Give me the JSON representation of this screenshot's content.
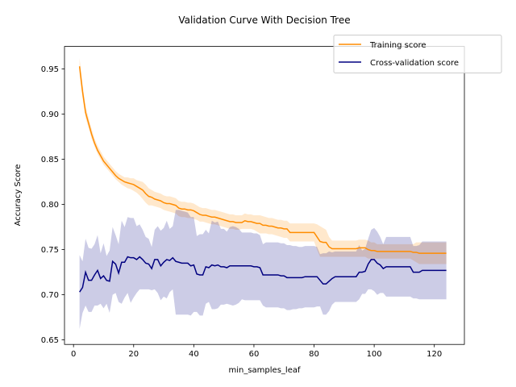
{
  "chart_data": {
    "type": "line",
    "title": "Validation Curve With Decision Tree",
    "xlabel": "min_samples_leaf",
    "ylabel": "Accuracy Score",
    "xlim": [
      -3,
      130
    ],
    "ylim": [
      0.645,
      0.975
    ],
    "xticks": [
      0,
      20,
      40,
      60,
      80,
      100,
      120
    ],
    "yticks": [
      0.65,
      0.7,
      0.75,
      0.8,
      0.85,
      0.9,
      0.95
    ],
    "grid": false,
    "legend_position": "top-right",
    "x": [
      2,
      3,
      4,
      5,
      6,
      7,
      8,
      9,
      10,
      11,
      12,
      13,
      14,
      15,
      16,
      17,
      18,
      19,
      20,
      21,
      22,
      23,
      24,
      25,
      26,
      27,
      28,
      29,
      30,
      31,
      32,
      33,
      34,
      35,
      36,
      37,
      38,
      39,
      40,
      41,
      42,
      43,
      44,
      45,
      46,
      47,
      48,
      49,
      50,
      51,
      52,
      53,
      54,
      55,
      56,
      57,
      58,
      59,
      60,
      61,
      62,
      63,
      64,
      65,
      66,
      67,
      68,
      69,
      70,
      71,
      72,
      73,
      74,
      75,
      76,
      77,
      78,
      79,
      80,
      81,
      82,
      83,
      84,
      85,
      86,
      87,
      88,
      89,
      90,
      91,
      92,
      93,
      94,
      95,
      96,
      97,
      98,
      99,
      100,
      101,
      102,
      103,
      104,
      105,
      106,
      107,
      108,
      109,
      110,
      111,
      112,
      113,
      114,
      115,
      116,
      117,
      118,
      119,
      120,
      121,
      122,
      123,
      124
    ],
    "series": [
      {
        "name": "Training score",
        "color": "#ff8c00",
        "values": [
          0.953,
          0.925,
          0.902,
          0.89,
          0.878,
          0.868,
          0.86,
          0.854,
          0.848,
          0.844,
          0.84,
          0.836,
          0.832,
          0.829,
          0.827,
          0.825,
          0.824,
          0.823,
          0.822,
          0.82,
          0.818,
          0.816,
          0.812,
          0.809,
          0.808,
          0.806,
          0.805,
          0.804,
          0.802,
          0.801,
          0.801,
          0.8,
          0.799,
          0.796,
          0.795,
          0.795,
          0.794,
          0.794,
          0.793,
          0.791,
          0.789,
          0.788,
          0.788,
          0.787,
          0.786,
          0.786,
          0.785,
          0.784,
          0.783,
          0.782,
          0.781,
          0.781,
          0.78,
          0.78,
          0.78,
          0.782,
          0.781,
          0.781,
          0.78,
          0.779,
          0.779,
          0.777,
          0.777,
          0.776,
          0.776,
          0.775,
          0.774,
          0.774,
          0.773,
          0.773,
          0.769,
          0.769,
          0.769,
          0.769,
          0.769,
          0.769,
          0.769,
          0.769,
          0.769,
          0.764,
          0.759,
          0.758,
          0.758,
          0.753,
          0.751,
          0.751,
          0.751,
          0.751,
          0.751,
          0.751,
          0.751,
          0.751,
          0.751,
          0.752,
          0.752,
          0.752,
          0.75,
          0.749,
          0.749,
          0.748,
          0.748,
          0.748,
          0.748,
          0.748,
          0.748,
          0.748,
          0.748,
          0.748,
          0.748,
          0.748,
          0.748,
          0.747,
          0.747,
          0.746,
          0.746,
          0.746,
          0.746,
          0.746,
          0.746,
          0.746,
          0.746,
          0.746,
          0.746
        ],
        "lower": [
          0.945,
          0.918,
          0.896,
          0.885,
          0.873,
          0.864,
          0.856,
          0.85,
          0.844,
          0.84,
          0.836,
          0.832,
          0.828,
          0.825,
          0.822,
          0.82,
          0.818,
          0.817,
          0.815,
          0.813,
          0.81,
          0.806,
          0.802,
          0.799,
          0.799,
          0.798,
          0.797,
          0.796,
          0.794,
          0.793,
          0.792,
          0.791,
          0.79,
          0.787,
          0.786,
          0.786,
          0.785,
          0.785,
          0.784,
          0.783,
          0.781,
          0.781,
          0.78,
          0.779,
          0.778,
          0.778,
          0.777,
          0.776,
          0.775,
          0.774,
          0.773,
          0.773,
          0.772,
          0.772,
          0.773,
          0.773,
          0.773,
          0.773,
          0.772,
          0.77,
          0.768,
          0.768,
          0.768,
          0.767,
          0.767,
          0.766,
          0.765,
          0.764,
          0.763,
          0.763,
          0.759,
          0.759,
          0.759,
          0.759,
          0.759,
          0.759,
          0.759,
          0.759,
          0.759,
          0.75,
          0.742,
          0.742,
          0.742,
          0.742,
          0.742,
          0.742,
          0.742,
          0.742,
          0.742,
          0.742,
          0.742,
          0.742,
          0.742,
          0.742,
          0.742,
          0.742,
          0.74,
          0.74,
          0.74,
          0.74,
          0.74,
          0.74,
          0.74,
          0.74,
          0.74,
          0.74,
          0.74,
          0.74,
          0.74,
          0.74,
          0.74,
          0.738,
          0.736,
          0.734,
          0.734,
          0.734,
          0.734,
          0.734,
          0.734,
          0.734,
          0.734,
          0.734,
          0.734
        ],
        "upper": [
          0.962,
          0.933,
          0.909,
          0.896,
          0.884,
          0.873,
          0.865,
          0.859,
          0.853,
          0.849,
          0.845,
          0.841,
          0.837,
          0.834,
          0.832,
          0.83,
          0.83,
          0.829,
          0.829,
          0.827,
          0.826,
          0.825,
          0.822,
          0.818,
          0.816,
          0.814,
          0.813,
          0.812,
          0.81,
          0.809,
          0.809,
          0.808,
          0.807,
          0.804,
          0.803,
          0.803,
          0.802,
          0.802,
          0.801,
          0.799,
          0.797,
          0.796,
          0.796,
          0.795,
          0.794,
          0.794,
          0.793,
          0.792,
          0.791,
          0.79,
          0.789,
          0.789,
          0.788,
          0.788,
          0.788,
          0.79,
          0.789,
          0.789,
          0.788,
          0.788,
          0.788,
          0.787,
          0.786,
          0.785,
          0.785,
          0.784,
          0.783,
          0.783,
          0.782,
          0.782,
          0.779,
          0.779,
          0.779,
          0.779,
          0.779,
          0.779,
          0.779,
          0.779,
          0.779,
          0.778,
          0.776,
          0.774,
          0.772,
          0.764,
          0.76,
          0.76,
          0.76,
          0.76,
          0.76,
          0.76,
          0.76,
          0.76,
          0.76,
          0.761,
          0.761,
          0.761,
          0.76,
          0.758,
          0.758,
          0.756,
          0.756,
          0.756,
          0.756,
          0.756,
          0.756,
          0.756,
          0.756,
          0.756,
          0.756,
          0.756,
          0.756,
          0.756,
          0.758,
          0.758,
          0.758,
          0.758,
          0.758,
          0.758,
          0.758,
          0.758,
          0.758,
          0.758,
          0.758
        ]
      },
      {
        "name": "Cross-validation score",
        "color": "#000080",
        "values": [
          0.703,
          0.708,
          0.725,
          0.716,
          0.716,
          0.722,
          0.727,
          0.718,
          0.721,
          0.716,
          0.715,
          0.737,
          0.734,
          0.724,
          0.736,
          0.736,
          0.742,
          0.741,
          0.741,
          0.739,
          0.742,
          0.739,
          0.735,
          0.734,
          0.729,
          0.739,
          0.739,
          0.732,
          0.736,
          0.739,
          0.738,
          0.741,
          0.737,
          0.736,
          0.735,
          0.735,
          0.735,
          0.732,
          0.733,
          0.723,
          0.722,
          0.722,
          0.731,
          0.73,
          0.733,
          0.732,
          0.733,
          0.731,
          0.731,
          0.73,
          0.732,
          0.732,
          0.732,
          0.732,
          0.732,
          0.732,
          0.732,
          0.732,
          0.731,
          0.731,
          0.73,
          0.722,
          0.722,
          0.722,
          0.722,
          0.722,
          0.722,
          0.721,
          0.721,
          0.719,
          0.719,
          0.719,
          0.719,
          0.719,
          0.719,
          0.72,
          0.72,
          0.72,
          0.72,
          0.72,
          0.716,
          0.712,
          0.712,
          0.715,
          0.718,
          0.72,
          0.72,
          0.72,
          0.72,
          0.72,
          0.72,
          0.72,
          0.72,
          0.725,
          0.725,
          0.726,
          0.734,
          0.739,
          0.739,
          0.735,
          0.733,
          0.729,
          0.731,
          0.731,
          0.731,
          0.731,
          0.731,
          0.731,
          0.731,
          0.731,
          0.731,
          0.725,
          0.725,
          0.725,
          0.727,
          0.727,
          0.727,
          0.727,
          0.727,
          0.727,
          0.727,
          0.727,
          0.727
        ],
        "lower": [
          0.662,
          0.68,
          0.688,
          0.681,
          0.681,
          0.688,
          0.688,
          0.69,
          0.685,
          0.69,
          0.68,
          0.7,
          0.702,
          0.692,
          0.69,
          0.697,
          0.702,
          0.691,
          0.697,
          0.702,
          0.706,
          0.706,
          0.706,
          0.706,
          0.705,
          0.706,
          0.702,
          0.694,
          0.698,
          0.696,
          0.703,
          0.706,
          0.678,
          0.678,
          0.678,
          0.678,
          0.678,
          0.677,
          0.681,
          0.681,
          0.677,
          0.677,
          0.69,
          0.692,
          0.684,
          0.684,
          0.685,
          0.689,
          0.689,
          0.69,
          0.689,
          0.688,
          0.689,
          0.691,
          0.695,
          0.694,
          0.694,
          0.694,
          0.694,
          0.694,
          0.694,
          0.688,
          0.686,
          0.686,
          0.686,
          0.686,
          0.686,
          0.685,
          0.685,
          0.683,
          0.683,
          0.684,
          0.684,
          0.685,
          0.685,
          0.686,
          0.686,
          0.686,
          0.686,
          0.687,
          0.687,
          0.678,
          0.678,
          0.682,
          0.689,
          0.692,
          0.692,
          0.692,
          0.692,
          0.692,
          0.692,
          0.692,
          0.692,
          0.695,
          0.701,
          0.701,
          0.706,
          0.706,
          0.704,
          0.7,
          0.702,
          0.702,
          0.698,
          0.698,
          0.698,
          0.698,
          0.698,
          0.698,
          0.698,
          0.698,
          0.698,
          0.696,
          0.696,
          0.695,
          0.695,
          0.695,
          0.695,
          0.695,
          0.695,
          0.695,
          0.695,
          0.695,
          0.695
        ],
        "upper": [
          0.744,
          0.737,
          0.762,
          0.752,
          0.751,
          0.756,
          0.766,
          0.746,
          0.757,
          0.743,
          0.749,
          0.775,
          0.766,
          0.756,
          0.782,
          0.775,
          0.786,
          0.785,
          0.785,
          0.776,
          0.778,
          0.772,
          0.764,
          0.762,
          0.753,
          0.772,
          0.776,
          0.771,
          0.774,
          0.782,
          0.773,
          0.776,
          0.794,
          0.794,
          0.793,
          0.792,
          0.791,
          0.786,
          0.786,
          0.765,
          0.767,
          0.767,
          0.772,
          0.768,
          0.782,
          0.78,
          0.781,
          0.773,
          0.773,
          0.77,
          0.775,
          0.776,
          0.775,
          0.773,
          0.769,
          0.769,
          0.769,
          0.769,
          0.768,
          0.768,
          0.766,
          0.756,
          0.758,
          0.758,
          0.758,
          0.758,
          0.758,
          0.757,
          0.757,
          0.755,
          0.755,
          0.754,
          0.754,
          0.753,
          0.753,
          0.754,
          0.754,
          0.754,
          0.754,
          0.753,
          0.745,
          0.746,
          0.746,
          0.748,
          0.747,
          0.748,
          0.748,
          0.748,
          0.748,
          0.748,
          0.748,
          0.748,
          0.748,
          0.755,
          0.749,
          0.751,
          0.762,
          0.772,
          0.774,
          0.77,
          0.764,
          0.756,
          0.764,
          0.764,
          0.764,
          0.764,
          0.764,
          0.764,
          0.764,
          0.764,
          0.764,
          0.754,
          0.754,
          0.755,
          0.759,
          0.759,
          0.759,
          0.759,
          0.759,
          0.759,
          0.759,
          0.759,
          0.759
        ]
      }
    ]
  }
}
